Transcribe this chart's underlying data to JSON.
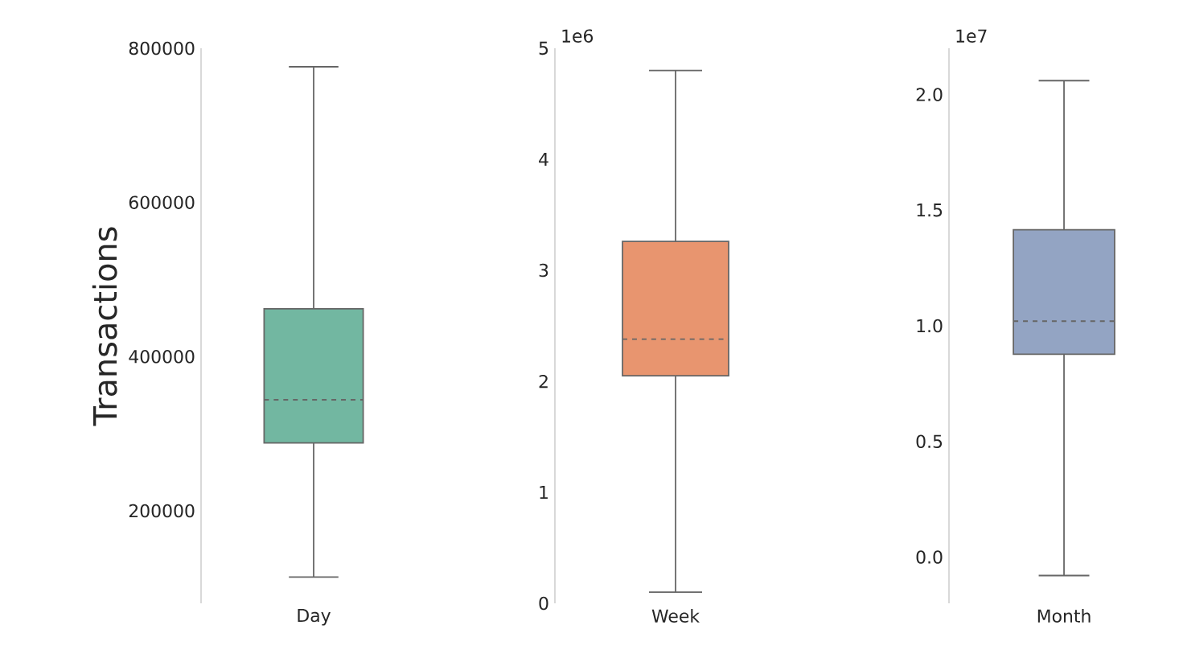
{
  "chart_data": [
    {
      "type": "box",
      "ylabel": "Transactions",
      "categories": [
        "Day"
      ],
      "colors": [
        "#72b7a1"
      ],
      "ylim": [
        80000,
        800000
      ],
      "yticks": [
        200000,
        400000,
        600000,
        800000
      ],
      "grid": false,
      "boxes": [
        {
          "low": 114000,
          "q1": 288000,
          "median": 344000,
          "q3": 462000,
          "high": 776000
        }
      ]
    },
    {
      "type": "box",
      "categories": [
        "Week"
      ],
      "colors": [
        "#e8956f"
      ],
      "ylim": [
        0,
        5
      ],
      "annotations": [
        "1e6"
      ],
      "grid": false,
      "yticks": [
        0,
        1,
        2,
        3,
        4,
        5
      ],
      "boxes": [
        {
          "low": 0.1,
          "q1": 2.05,
          "median": 2.38,
          "q3": 3.26,
          "high": 4.8
        }
      ]
    },
    {
      "type": "box",
      "categories": [
        "Month"
      ],
      "colors": [
        "#93a4c3"
      ],
      "ylim": [
        -0.2,
        2.2
      ],
      "annotations": [
        "1e7"
      ],
      "grid": false,
      "yticks": [
        {
          "value": 0,
          "label": "0.0"
        },
        {
          "value": 0.5,
          "label": "0.5"
        },
        {
          "value": 1,
          "label": "1.0"
        },
        {
          "value": 1.5,
          "label": "1.5"
        },
        {
          "value": 2,
          "label": "2.0"
        }
      ],
      "boxes": [
        {
          "low": -0.08,
          "q1": 0.877,
          "median": 1.02,
          "q3": 1.415,
          "high": 2.06
        }
      ]
    }
  ]
}
